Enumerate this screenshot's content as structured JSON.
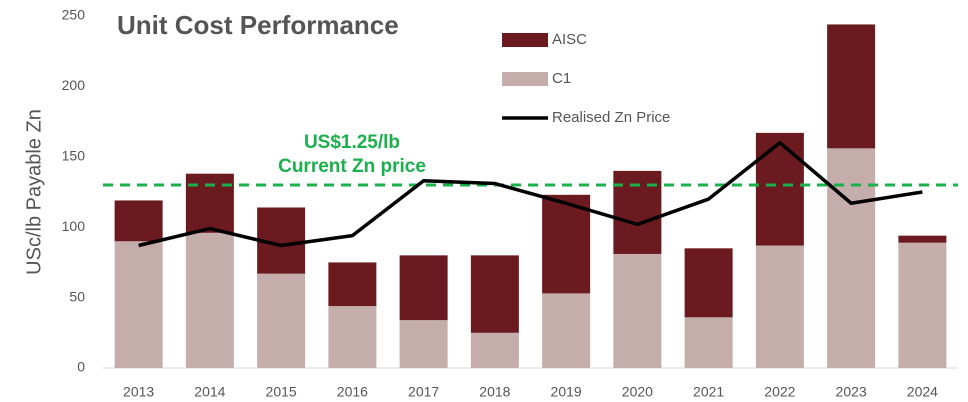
{
  "chart_data": {
    "type": "bar",
    "stacked": true,
    "title": "Unit Cost Performance",
    "y_label": "USc/lb Payable Zn",
    "categories": [
      "2013",
      "2014",
      "2015",
      "2016",
      "2017",
      "2018",
      "2019",
      "2020",
      "2021",
      "2022",
      "2023",
      "2024"
    ],
    "series": [
      {
        "name": "AISC",
        "color": "#6b1a1f",
        "values": [
          29,
          42,
          47,
          31,
          46,
          55,
          70,
          59,
          49,
          80,
          88,
          5
        ]
      },
      {
        "name": "C1",
        "color": "#c4adab",
        "values": [
          90,
          96,
          67,
          44,
          34,
          25,
          53,
          81,
          36,
          87,
          156,
          89
        ]
      },
      {
        "name": "Realised Zn Price",
        "type": "line",
        "color": "#000000",
        "values": [
          87,
          99,
          87,
          94,
          133,
          131,
          117,
          102,
          120,
          160,
          117,
          125
        ]
      }
    ],
    "reference_line": {
      "value": 130,
      "color": "#1ab04c",
      "labels": [
        "US$1.25/lb",
        "Current Zn price"
      ]
    },
    "ylim": [
      0,
      250
    ],
    "yticks": [
      0,
      50,
      100,
      150,
      200,
      250
    ],
    "grid": false
  }
}
